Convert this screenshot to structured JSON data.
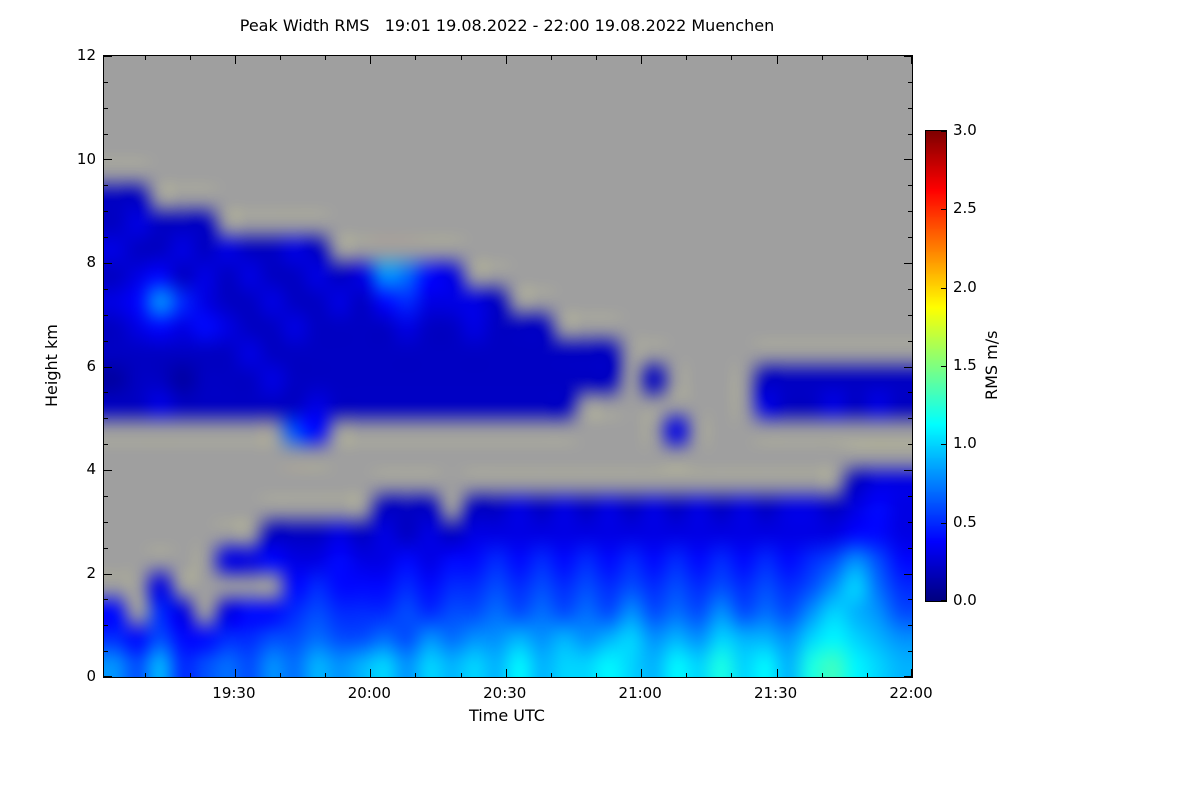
{
  "title": "Peak Width RMS   19:01 19.08.2022 - 22:00 19.08.2022 Muenchen",
  "axes": {
    "x_label": "Time UTC",
    "y_label": "Height km",
    "x_start": "19:01",
    "x_end": "22:00",
    "x_ticks": [
      "19:30",
      "20:00",
      "20:30",
      "21:00",
      "21:30",
      "22:00"
    ],
    "y_ticks": [
      "0",
      "2",
      "4",
      "6",
      "8",
      "10",
      "12"
    ]
  },
  "colorbar": {
    "label": "RMS m/s",
    "ticks": [
      "0.0",
      "0.5",
      "1.0",
      "1.5",
      "2.0",
      "2.5",
      "3.0"
    ],
    "vmin": 0,
    "vmax": 3,
    "colormap": "jet"
  },
  "colors": {
    "no_data": "#9f9f9f",
    "frame": "#000000",
    "background": "#ffffff",
    "text": "#000000"
  },
  "chart_data": {
    "type": "heatmap",
    "title": "Peak Width RMS   19:01 19.08.2022 - 22:00 19.08.2022 Muenchen",
    "xlabel": "Time UTC",
    "ylabel": "Height km",
    "zlabel": "RMS m/s",
    "x_start": "19:01",
    "x_end": "22:00",
    "ylim": [
      0,
      12
    ],
    "zlim": [
      0,
      3
    ],
    "grid": {
      "cols": 36,
      "rows": 24,
      "cell_minutes": 5,
      "cell_km": 0.5,
      "row_order": "top-to-bottom (12 km to 0 km)",
      "col_order": "19:00 to 22:00"
    },
    "no_data_value": -1,
    "no_data_color": "#9f9f9f",
    "values": [
      [
        -1,
        -1,
        -1,
        -1,
        -1,
        -1,
        -1,
        -1,
        -1,
        -1,
        -1,
        -1,
        -1,
        -1,
        -1,
        -1,
        -1,
        -1,
        -1,
        -1,
        -1,
        -1,
        -1,
        -1,
        -1,
        -1,
        -1,
        -1,
        -1,
        -1,
        -1,
        -1,
        -1,
        -1,
        -1,
        -1
      ],
      [
        -1,
        -1,
        -1,
        -1,
        -1,
        -1,
        -1,
        -1,
        -1,
        -1,
        -1,
        -1,
        -1,
        -1,
        -1,
        -1,
        -1,
        -1,
        -1,
        -1,
        -1,
        -1,
        -1,
        -1,
        -1,
        -1,
        -1,
        -1,
        -1,
        -1,
        -1,
        -1,
        -1,
        -1,
        -1,
        -1
      ],
      [
        -1,
        -1,
        -1,
        -1,
        -1,
        -1,
        -1,
        -1,
        -1,
        -1,
        -1,
        -1,
        -1,
        -1,
        -1,
        -1,
        -1,
        -1,
        -1,
        -1,
        -1,
        -1,
        -1,
        -1,
        -1,
        -1,
        -1,
        -1,
        -1,
        -1,
        -1,
        -1,
        -1,
        -1,
        -1,
        -1
      ],
      [
        -1,
        -1,
        -1,
        -1,
        -1,
        -1,
        -1,
        -1,
        -1,
        -1,
        -1,
        -1,
        -1,
        -1,
        -1,
        -1,
        -1,
        -1,
        -1,
        -1,
        -1,
        -1,
        -1,
        -1,
        -1,
        -1,
        -1,
        -1,
        -1,
        -1,
        -1,
        -1,
        -1,
        -1,
        -1,
        -1
      ],
      [
        -1,
        -1,
        -1,
        -1,
        -1,
        -1,
        -1,
        -1,
        -1,
        -1,
        -1,
        -1,
        -1,
        -1,
        -1,
        -1,
        -1,
        -1,
        -1,
        -1,
        -1,
        -1,
        -1,
        -1,
        -1,
        -1,
        -1,
        -1,
        -1,
        -1,
        -1,
        -1,
        -1,
        -1,
        -1,
        -1
      ],
      [
        0.2,
        0.2,
        -1,
        -1,
        -1,
        -1,
        -1,
        -1,
        -1,
        -1,
        -1,
        -1,
        -1,
        -1,
        -1,
        -1,
        -1,
        -1,
        -1,
        -1,
        -1,
        -1,
        -1,
        -1,
        -1,
        -1,
        -1,
        -1,
        -1,
        -1,
        -1,
        -1,
        -1,
        -1,
        -1,
        -1
      ],
      [
        0.2,
        0.3,
        0.2,
        0.2,
        0.2,
        -1,
        -1,
        -1,
        -1,
        -1,
        -1,
        -1,
        -1,
        -1,
        -1,
        -1,
        -1,
        -1,
        -1,
        -1,
        -1,
        -1,
        -1,
        -1,
        -1,
        -1,
        -1,
        -1,
        -1,
        -1,
        -1,
        -1,
        -1,
        -1,
        -1,
        -1
      ],
      [
        0.3,
        0.2,
        0.2,
        0.3,
        0.2,
        0.3,
        0.2,
        0.2,
        0.3,
        0.2,
        -1,
        -1,
        -1,
        -1,
        -1,
        -1,
        -1,
        -1,
        -1,
        -1,
        -1,
        -1,
        -1,
        -1,
        -1,
        -1,
        -1,
        -1,
        -1,
        -1,
        -1,
        -1,
        -1,
        -1,
        -1,
        -1
      ],
      [
        0.2,
        0.3,
        0.4,
        0.2,
        0.3,
        0.2,
        0.3,
        0.2,
        0.2,
        0.3,
        0.2,
        0.3,
        0.8,
        0.7,
        0.4,
        0.3,
        -1,
        -1,
        -1,
        -1,
        -1,
        -1,
        -1,
        -1,
        -1,
        -1,
        -1,
        -1,
        -1,
        -1,
        -1,
        -1,
        -1,
        -1,
        -1,
        -1
      ],
      [
        0.3,
        0.4,
        0.8,
        0.5,
        0.3,
        0.2,
        0.2,
        0.3,
        0.2,
        0.2,
        0.3,
        0.2,
        0.4,
        0.5,
        0.3,
        0.3,
        0.3,
        0.2,
        -1,
        -1,
        -1,
        -1,
        -1,
        -1,
        -1,
        -1,
        -1,
        -1,
        -1,
        -1,
        -1,
        -1,
        -1,
        -1,
        -1,
        -1
      ],
      [
        0.2,
        0.3,
        0.4,
        0.3,
        0.4,
        0.3,
        0.2,
        0.2,
        0.3,
        0.2,
        0.2,
        0.2,
        0.2,
        0.3,
        0.2,
        0.2,
        0.3,
        0.2,
        0.2,
        0.2,
        -1,
        -1,
        -1,
        -1,
        -1,
        -1,
        -1,
        -1,
        -1,
        -1,
        -1,
        -1,
        -1,
        -1,
        -1,
        -1
      ],
      [
        0.2,
        0.2,
        0.2,
        0.2,
        0.2,
        0.2,
        0.3,
        0.2,
        0.2,
        0.2,
        0.2,
        0.2,
        0.2,
        0.2,
        0.2,
        0.2,
        0.2,
        0.2,
        0.2,
        0.2,
        0.2,
        0.2,
        0.2,
        -1,
        -1,
        -1,
        -1,
        -1,
        -1,
        -1,
        -1,
        -1,
        -1,
        -1,
        -1,
        -1
      ],
      [
        0.1,
        0.2,
        0.2,
        0.1,
        0.2,
        0.2,
        0.2,
        0.3,
        0.2,
        0.2,
        0.2,
        0.2,
        0.2,
        0.2,
        0.2,
        0.2,
        0.2,
        0.2,
        0.2,
        0.2,
        0.2,
        0.2,
        0.2,
        -1,
        0.2,
        -1,
        -1,
        -1,
        -1,
        0.2,
        0.2,
        0.2,
        0.2,
        0.2,
        0.2,
        0.2
      ],
      [
        0.2,
        0.2,
        0.3,
        0.2,
        0.2,
        0.2,
        0.2,
        0.2,
        0.2,
        0.3,
        0.2,
        0.2,
        0.2,
        0.2,
        0.2,
        0.2,
        0.2,
        0.2,
        0.2,
        0.2,
        0.2,
        -1,
        -1,
        -1,
        -1,
        -1,
        -1,
        -1,
        -1,
        0.3,
        0.2,
        0.2,
        0.3,
        0.2,
        0.3,
        0.2
      ],
      [
        -1,
        -1,
        -1,
        -1,
        -1,
        -1,
        -1,
        -1,
        0.6,
        0.4,
        -1,
        -1,
        -1,
        -1,
        -1,
        -1,
        -1,
        -1,
        -1,
        -1,
        -1,
        -1,
        -1,
        -1,
        -1,
        0.3,
        -1,
        -1,
        -1,
        -1,
        -1,
        -1,
        -1,
        -1,
        -1,
        -1
      ],
      [
        -1,
        -1,
        -1,
        -1,
        -1,
        -1,
        -1,
        -1,
        -1,
        -1,
        -1,
        -1,
        -1,
        -1,
        -1,
        -1,
        -1,
        -1,
        -1,
        -1,
        -1,
        -1,
        -1,
        -1,
        -1,
        -1,
        -1,
        -1,
        -1,
        -1,
        -1,
        -1,
        -1,
        -1,
        -1,
        -1
      ],
      [
        -1,
        -1,
        -1,
        -1,
        -1,
        -1,
        -1,
        -1,
        -1,
        -1,
        -1,
        -1,
        -1,
        -1,
        -1,
        -1,
        -1,
        -1,
        -1,
        -1,
        -1,
        -1,
        -1,
        -1,
        -1,
        -1,
        -1,
        -1,
        -1,
        -1,
        -1,
        -1,
        -1,
        0.2,
        0.3,
        0.3
      ],
      [
        -1,
        -1,
        -1,
        -1,
        -1,
        -1,
        -1,
        -1,
        -1,
        -1,
        -1,
        -1,
        0.2,
        0.2,
        0.2,
        -1,
        0.2,
        0.2,
        0.3,
        0.2,
        0.3,
        0.2,
        0.3,
        0.2,
        0.3,
        0.2,
        0.3,
        0.2,
        0.3,
        0.2,
        0.3,
        0.3,
        0.2,
        0.3,
        0.4,
        0.3
      ],
      [
        -1,
        -1,
        -1,
        -1,
        -1,
        -1,
        -1,
        0.2,
        0.2,
        0.2,
        0.3,
        0.2,
        0.3,
        0.2,
        0.3,
        0.2,
        0.3,
        0.3,
        0.3,
        0.3,
        0.3,
        0.3,
        0.3,
        0.3,
        0.3,
        0.3,
        0.3,
        0.3,
        0.3,
        0.3,
        0.3,
        0.3,
        0.3,
        0.4,
        0.4,
        0.3
      ],
      [
        -1,
        -1,
        -1,
        -1,
        -1,
        0.3,
        0.3,
        0.4,
        0.3,
        0.3,
        0.4,
        0.3,
        0.3,
        0.4,
        0.3,
        0.4,
        0.4,
        0.5,
        0.4,
        0.5,
        0.4,
        0.5,
        0.4,
        0.5,
        0.4,
        0.5,
        0.4,
        0.5,
        0.4,
        0.5,
        0.4,
        0.5,
        0.6,
        0.8,
        0.6,
        0.4
      ],
      [
        -1,
        -1,
        0.3,
        -1,
        -1,
        -1,
        -1,
        -1,
        0.4,
        0.5,
        0.4,
        0.4,
        0.4,
        0.5,
        0.4,
        0.5,
        0.5,
        0.6,
        0.5,
        0.6,
        0.5,
        0.6,
        0.5,
        0.6,
        0.5,
        0.6,
        0.5,
        0.6,
        0.5,
        0.6,
        0.5,
        0.6,
        0.8,
        1.0,
        0.7,
        0.5
      ],
      [
        0.4,
        -1,
        0.5,
        0.3,
        -1,
        0.3,
        0.4,
        0.4,
        0.5,
        0.6,
        0.5,
        0.5,
        0.5,
        0.6,
        0.5,
        0.6,
        0.6,
        0.7,
        0.6,
        0.7,
        0.6,
        0.7,
        0.6,
        0.8,
        0.6,
        0.7,
        0.6,
        0.8,
        0.6,
        0.7,
        0.6,
        0.8,
        1.0,
        0.9,
        0.8,
        0.6
      ],
      [
        0.5,
        0.4,
        0.6,
        0.4,
        0.4,
        0.5,
        0.5,
        0.6,
        0.6,
        0.7,
        0.6,
        0.6,
        0.7,
        0.6,
        0.8,
        0.7,
        0.8,
        0.8,
        0.9,
        0.8,
        0.9,
        0.8,
        0.9,
        1.0,
        0.8,
        0.9,
        0.8,
        1.0,
        0.9,
        0.9,
        0.8,
        1.0,
        1.1,
        1.0,
        0.9,
        0.8
      ],
      [
        0.8,
        0.6,
        0.9,
        0.5,
        0.6,
        0.7,
        0.6,
        0.8,
        0.7,
        0.9,
        0.8,
        0.9,
        1.0,
        0.8,
        1.0,
        0.9,
        1.0,
        0.9,
        1.1,
        0.9,
        1.0,
        1.0,
        1.1,
        1.0,
        0.9,
        1.1,
        1.0,
        1.2,
        1.0,
        1.1,
        0.9,
        1.2,
        1.3,
        1.1,
        1.0,
        0.9
      ]
    ]
  }
}
